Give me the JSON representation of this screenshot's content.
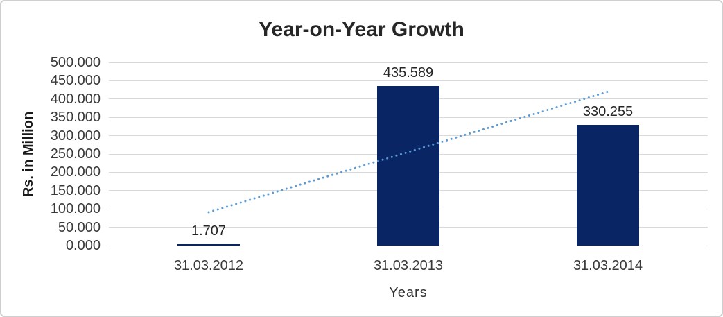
{
  "chart_data": {
    "type": "bar",
    "title": "Year-on-Year Growth",
    "xlabel": "Years",
    "ylabel": "Rs. in Million",
    "categories": [
      "31.03.2012",
      "31.03.2013",
      "31.03.2014"
    ],
    "values": [
      1.707,
      435.589,
      330.255
    ],
    "data_labels": [
      "1.707",
      "435.589",
      "330.255"
    ],
    "ylim": [
      0,
      500
    ],
    "ytick_step": 50,
    "ytick_labels": [
      "0.000",
      "50.000",
      "100.000",
      "150.000",
      "200.000",
      "250.000",
      "300.000",
      "350.000",
      "400.000",
      "450.000",
      "500.000"
    ],
    "grid": true,
    "legend": "none",
    "trendline": {
      "type": "linear",
      "style": "dotted",
      "start_value": 91,
      "end_value": 420
    },
    "colors": {
      "bar": "#0a2563",
      "gridline": "#d9d9d9",
      "trendline": "#5b9bd5",
      "title_text": "#262626",
      "axis_text": "#3a3a3a",
      "frame_border": "#cfcfcf"
    }
  }
}
